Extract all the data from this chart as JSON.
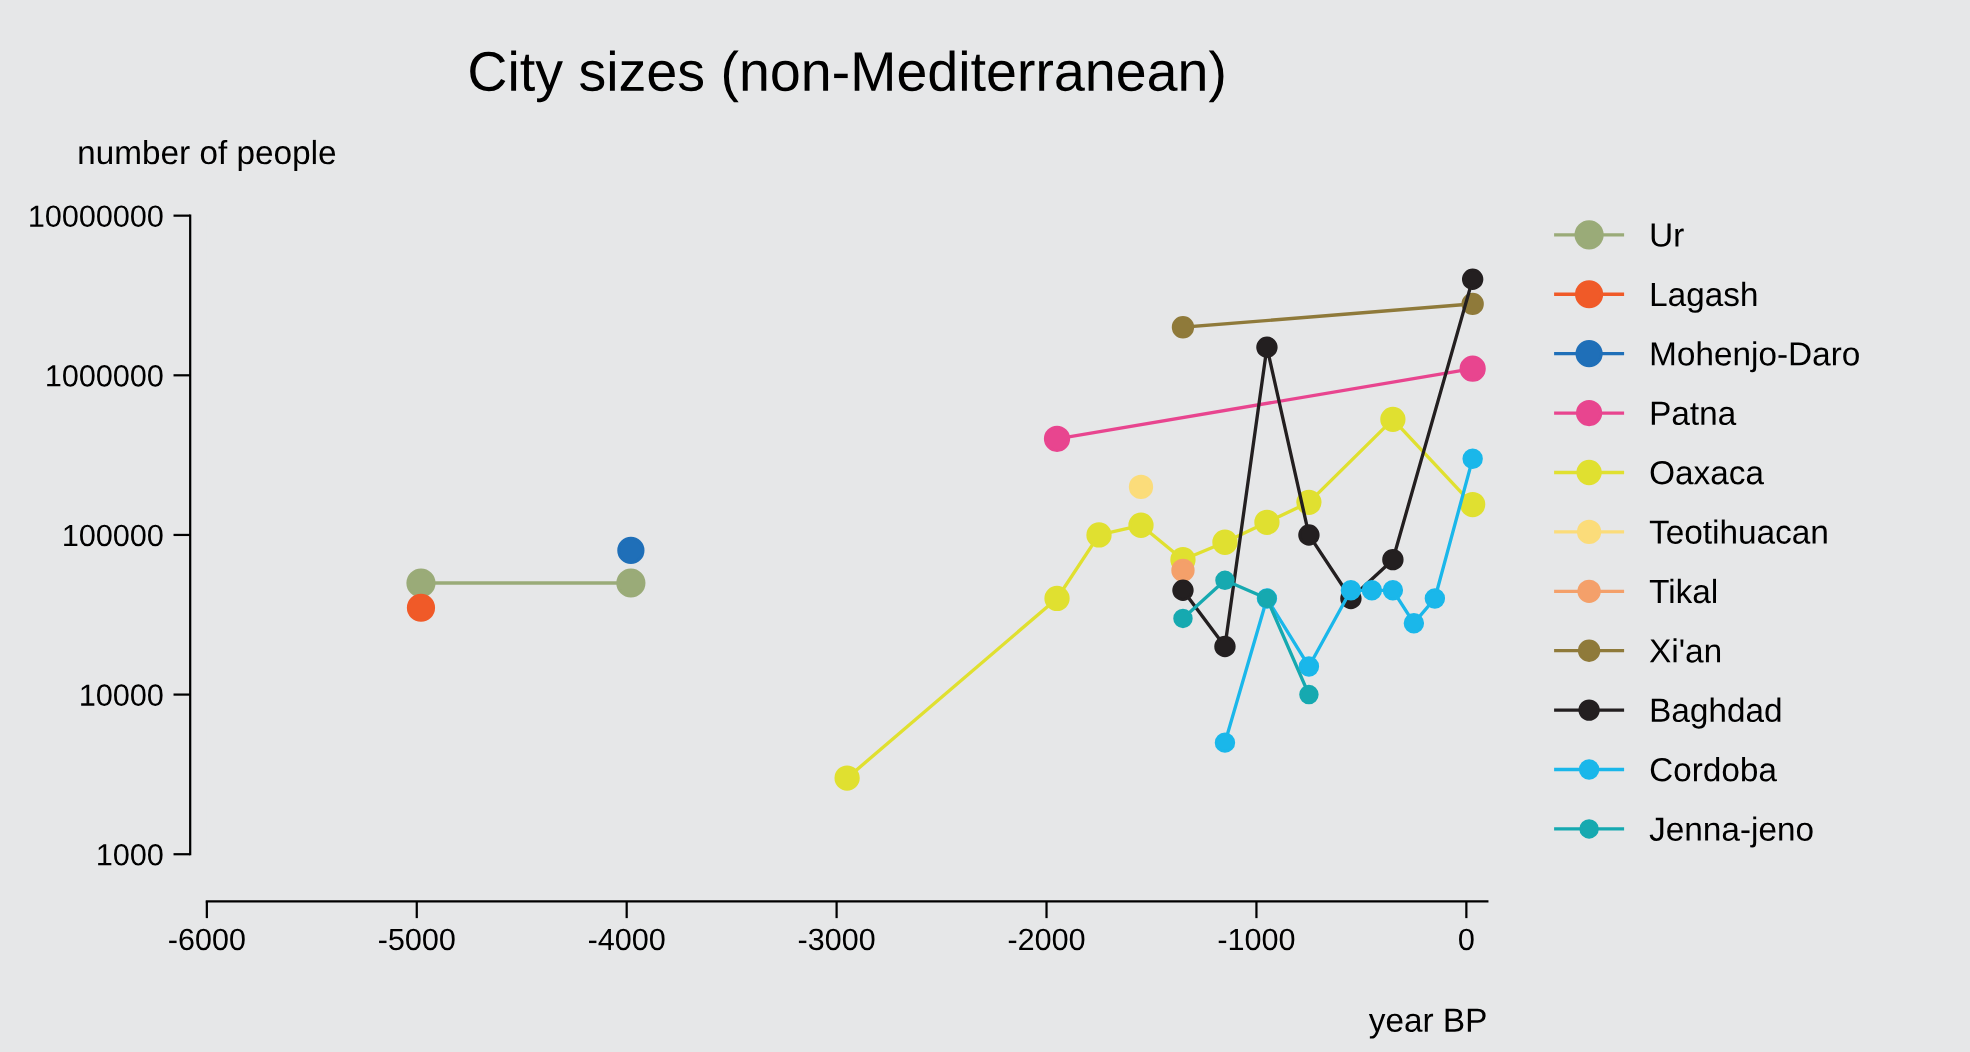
{
  "chart_data": {
    "type": "line",
    "title": "City sizes (non-Mediterranean)",
    "xlabel": "year BP",
    "ylabel": "number of people",
    "log": "y",
    "xlim": [
      -6000,
      100
    ],
    "xticks": [
      -6000,
      -5000,
      -4000,
      -3000,
      -2000,
      -1000,
      0
    ],
    "ylim": [
      1000,
      10000000
    ],
    "yticks": [
      1000,
      10000,
      100000,
      1000000,
      10000000
    ],
    "grid": false,
    "legend": "right",
    "marker": "circle",
    "line_style": "solid",
    "series": [
      {
        "name": "Ur",
        "color": "#9aab78",
        "x": [
          -4980,
          -3980
        ],
        "values": [
          50000,
          50000
        ]
      },
      {
        "name": "Lagash",
        "color": "#f05a28",
        "x": [
          -4980
        ],
        "values": [
          35000
        ]
      },
      {
        "name": "Mohenjo-Daro",
        "color": "#1f6fb8",
        "x": [
          -3980
        ],
        "values": [
          80000
        ]
      },
      {
        "name": "Patna",
        "color": "#e8458f",
        "x": [
          -1950,
          30
        ],
        "values": [
          400000,
          1100000
        ]
      },
      {
        "name": "Oaxaca",
        "color": "#e0e030",
        "x": [
          -2950,
          -1950,
          -1750,
          -1550,
          -1350,
          -1150,
          -950,
          -750,
          -350,
          30
        ],
        "values": [
          3000,
          40000,
          100000,
          115000,
          70000,
          90000,
          120000,
          160000,
          530000,
          155000
        ]
      },
      {
        "name": "Teotihuacan",
        "color": "#fbdc7a",
        "x": [
          -1550
        ],
        "values": [
          200000
        ]
      },
      {
        "name": "Tikal",
        "color": "#f4a06a",
        "x": [
          -1350
        ],
        "values": [
          60000
        ]
      },
      {
        "name": "Xi'an",
        "color": "#8f7a3a",
        "x": [
          -1350,
          30
        ],
        "values": [
          2000000,
          2800000
        ]
      },
      {
        "name": "Baghdad",
        "color": "#231f20",
        "x": [
          -1350,
          -1150,
          -950,
          -750,
          -550,
          -350,
          30
        ],
        "values": [
          45000,
          20000,
          1500000,
          100000,
          40000,
          70000,
          4000000
        ]
      },
      {
        "name": "Cordoba",
        "color": "#1ab7ea",
        "x": [
          -1150,
          -950,
          -750,
          -550,
          -450,
          -350,
          -250,
          -150,
          30
        ],
        "values": [
          5000,
          40000,
          15000,
          45000,
          45000,
          45000,
          28000,
          40000,
          300000
        ]
      },
      {
        "name": "Jenna-jeno",
        "color": "#16a9b0",
        "x": [
          -1350,
          -1150,
          -950,
          -750
        ],
        "values": [
          30000,
          52000,
          40000,
          10000
        ]
      }
    ]
  }
}
